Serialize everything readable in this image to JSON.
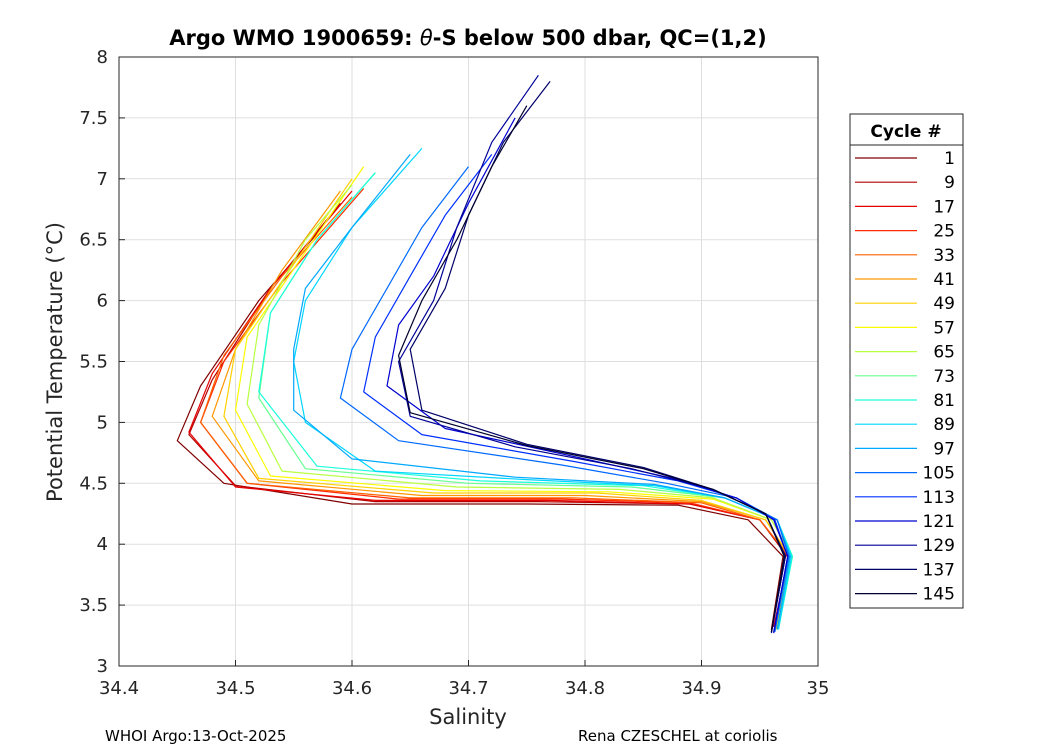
{
  "title_prefix": "Argo WMO 1900659: ",
  "title_theta": "θ",
  "title_suffix": "-S below 500 dbar,  QC=(1,2)",
  "footer_left": "WHOI Argo:13-Oct-2025",
  "footer_right": "Rena CZESCHEL at coriolis",
  "legend_title": "Cycle #",
  "chart_data": {
    "type": "line",
    "title": "Argo WMO 1900659: θ-S below 500 dbar,  QC=(1,2)",
    "xlabel": "Salinity",
    "ylabel": "Potential Temperature (°C)",
    "xlim": [
      34.4,
      35.0
    ],
    "ylim": [
      3,
      8
    ],
    "xticks": [
      "34.4",
      "34.5",
      "34.6",
      "34.7",
      "34.8",
      "34.9",
      "35"
    ],
    "yticks": [
      "3",
      "3.5",
      "4",
      "4.5",
      "5",
      "5.5",
      "6",
      "6.5",
      "7",
      "7.5",
      "8"
    ],
    "grid": true,
    "legend_position": "right",
    "series": [
      {
        "name": "1",
        "color": "#800000",
        "points": [
          [
            34.57,
            6.55
          ],
          [
            34.52,
            6.0
          ],
          [
            34.47,
            5.3
          ],
          [
            34.45,
            4.85
          ],
          [
            34.49,
            4.5
          ],
          [
            34.6,
            4.33
          ],
          [
            34.75,
            4.33
          ],
          [
            34.88,
            4.32
          ],
          [
            34.94,
            4.2
          ],
          [
            34.97,
            3.9
          ],
          [
            34.96,
            3.3
          ]
        ]
      },
      {
        "name": "9",
        "color": "#b40000",
        "points": [
          [
            34.59,
            6.8
          ],
          [
            34.53,
            6.1
          ],
          [
            34.48,
            5.35
          ],
          [
            34.46,
            4.9
          ],
          [
            34.5,
            4.48
          ],
          [
            34.62,
            4.35
          ],
          [
            34.76,
            4.35
          ],
          [
            34.89,
            4.33
          ],
          [
            34.95,
            4.2
          ],
          [
            34.975,
            3.88
          ],
          [
            34.962,
            3.32
          ]
        ]
      },
      {
        "name": "17",
        "color": "#e60000",
        "points": [
          [
            34.6,
            6.9
          ],
          [
            34.53,
            6.1
          ],
          [
            34.48,
            5.4
          ],
          [
            34.46,
            4.92
          ],
          [
            34.5,
            4.47
          ],
          [
            34.62,
            4.36
          ],
          [
            34.77,
            4.36
          ],
          [
            34.89,
            4.33
          ],
          [
            34.95,
            4.2
          ],
          [
            34.975,
            3.9
          ],
          [
            34.962,
            3.32
          ]
        ]
      },
      {
        "name": "25",
        "color": "#ff2a00",
        "points": [
          [
            34.61,
            6.92
          ],
          [
            34.54,
            6.15
          ],
          [
            34.49,
            5.5
          ],
          [
            34.47,
            5.0
          ],
          [
            34.51,
            4.5
          ],
          [
            34.64,
            4.37
          ],
          [
            34.78,
            4.37
          ],
          [
            34.89,
            4.34
          ],
          [
            34.95,
            4.2
          ],
          [
            34.975,
            3.9
          ],
          [
            34.963,
            3.3
          ]
        ]
      },
      {
        "name": "33",
        "color": "#ff6000",
        "points": [
          [
            34.6,
            6.85
          ],
          [
            34.54,
            6.2
          ],
          [
            34.49,
            5.55
          ],
          [
            34.47,
            5.0
          ],
          [
            34.51,
            4.5
          ],
          [
            34.65,
            4.38
          ],
          [
            34.79,
            4.38
          ],
          [
            34.9,
            4.34
          ],
          [
            34.95,
            4.2
          ],
          [
            34.975,
            3.9
          ],
          [
            34.963,
            3.3
          ]
        ]
      },
      {
        "name": "41",
        "color": "#ff9600",
        "points": [
          [
            34.59,
            6.9
          ],
          [
            34.54,
            6.25
          ],
          [
            34.5,
            5.6
          ],
          [
            34.48,
            5.05
          ],
          [
            34.52,
            4.52
          ],
          [
            34.66,
            4.4
          ],
          [
            34.8,
            4.4
          ],
          [
            34.9,
            4.35
          ],
          [
            34.955,
            4.2
          ],
          [
            34.975,
            3.9
          ],
          [
            34.964,
            3.3
          ]
        ]
      },
      {
        "name": "49",
        "color": "#ffd000",
        "points": [
          [
            34.6,
            7.0
          ],
          [
            34.55,
            6.3
          ],
          [
            34.5,
            5.6
          ],
          [
            34.49,
            5.05
          ],
          [
            34.52,
            4.54
          ],
          [
            34.67,
            4.42
          ],
          [
            34.81,
            4.42
          ],
          [
            34.9,
            4.36
          ],
          [
            34.955,
            4.2
          ],
          [
            34.976,
            3.9
          ],
          [
            34.964,
            3.3
          ]
        ]
      },
      {
        "name": "57",
        "color": "#fbfc00",
        "points": [
          [
            34.61,
            7.1
          ],
          [
            34.56,
            6.4
          ],
          [
            34.51,
            5.7
          ],
          [
            34.5,
            5.1
          ],
          [
            34.53,
            4.56
          ],
          [
            34.68,
            4.44
          ],
          [
            34.82,
            4.43
          ],
          [
            34.91,
            4.37
          ],
          [
            34.96,
            4.2
          ],
          [
            34.978,
            3.9
          ],
          [
            34.965,
            3.3
          ]
        ]
      },
      {
        "name": "65",
        "color": "#b8ff40",
        "points": [
          [
            34.6,
            6.95
          ],
          [
            34.56,
            6.5
          ],
          [
            34.52,
            5.8
          ],
          [
            34.51,
            5.15
          ],
          [
            34.54,
            4.6
          ],
          [
            34.69,
            4.47
          ],
          [
            34.83,
            4.45
          ],
          [
            34.91,
            4.38
          ],
          [
            34.96,
            4.2
          ],
          [
            34.978,
            3.9
          ],
          [
            34.965,
            3.3
          ]
        ]
      },
      {
        "name": "73",
        "color": "#66ff90",
        "points": [
          [
            34.62,
            7.05
          ],
          [
            34.57,
            6.5
          ],
          [
            34.53,
            5.9
          ],
          [
            34.52,
            5.2
          ],
          [
            34.56,
            4.62
          ],
          [
            34.7,
            4.5
          ],
          [
            34.84,
            4.47
          ],
          [
            34.92,
            4.38
          ],
          [
            34.965,
            4.2
          ],
          [
            34.978,
            3.9
          ],
          [
            34.966,
            3.3
          ]
        ]
      },
      {
        "name": "81",
        "color": "#1affdc",
        "points": [
          [
            34.62,
            7.05
          ],
          [
            34.57,
            6.5
          ],
          [
            34.53,
            5.9
          ],
          [
            34.52,
            5.25
          ],
          [
            34.57,
            4.64
          ],
          [
            34.71,
            4.52
          ],
          [
            34.85,
            4.48
          ],
          [
            34.92,
            4.38
          ],
          [
            34.965,
            4.2
          ],
          [
            34.978,
            3.9
          ],
          [
            34.966,
            3.3
          ]
        ]
      },
      {
        "name": "89",
        "color": "#00d6ff",
        "points": [
          [
            34.66,
            7.25
          ],
          [
            34.6,
            6.6
          ],
          [
            34.56,
            6.0
          ],
          [
            34.55,
            5.5
          ],
          [
            34.56,
            5.0
          ],
          [
            34.62,
            4.6
          ],
          [
            34.75,
            4.53
          ],
          [
            34.86,
            4.48
          ],
          [
            34.92,
            4.38
          ],
          [
            34.965,
            4.2
          ],
          [
            34.977,
            3.9
          ],
          [
            34.966,
            3.3
          ]
        ]
      },
      {
        "name": "97",
        "color": "#00a8ff",
        "points": [
          [
            34.65,
            7.2
          ],
          [
            34.6,
            6.6
          ],
          [
            34.56,
            6.1
          ],
          [
            34.55,
            5.6
          ],
          [
            34.55,
            5.1
          ],
          [
            34.6,
            4.7
          ],
          [
            34.74,
            4.55
          ],
          [
            34.86,
            4.49
          ],
          [
            34.92,
            4.38
          ],
          [
            34.965,
            4.2
          ],
          [
            34.976,
            3.9
          ],
          [
            34.965,
            3.3
          ]
        ]
      },
      {
        "name": "105",
        "color": "#006aff",
        "points": [
          [
            34.7,
            7.1
          ],
          [
            34.66,
            6.6
          ],
          [
            34.63,
            6.1
          ],
          [
            34.6,
            5.6
          ],
          [
            34.59,
            5.2
          ],
          [
            34.64,
            4.85
          ],
          [
            34.78,
            4.65
          ],
          [
            34.87,
            4.5
          ],
          [
            34.93,
            4.38
          ],
          [
            34.965,
            4.2
          ],
          [
            34.975,
            3.9
          ],
          [
            34.963,
            3.28
          ]
        ]
      },
      {
        "name": "113",
        "color": "#0030ff",
        "points": [
          [
            34.72,
            7.2
          ],
          [
            34.68,
            6.7
          ],
          [
            34.65,
            6.2
          ],
          [
            34.62,
            5.7
          ],
          [
            34.61,
            5.25
          ],
          [
            34.66,
            4.9
          ],
          [
            34.79,
            4.68
          ],
          [
            34.88,
            4.52
          ],
          [
            34.93,
            4.38
          ],
          [
            34.963,
            4.2
          ],
          [
            34.974,
            3.9
          ],
          [
            34.962,
            3.28
          ]
        ]
      },
      {
        "name": "121",
        "color": "#0000d0",
        "points": [
          [
            34.74,
            7.5
          ],
          [
            34.7,
            6.8
          ],
          [
            34.67,
            6.2
          ],
          [
            34.64,
            5.8
          ],
          [
            34.63,
            5.3
          ],
          [
            34.68,
            4.95
          ],
          [
            34.8,
            4.7
          ],
          [
            34.88,
            4.53
          ],
          [
            34.93,
            4.38
          ],
          [
            34.962,
            4.2
          ],
          [
            34.974,
            3.9
          ],
          [
            34.962,
            3.27
          ]
        ]
      },
      {
        "name": "129",
        "color": "#000098",
        "points": [
          [
            34.76,
            7.85
          ],
          [
            34.72,
            7.3
          ],
          [
            34.69,
            6.6
          ],
          [
            34.67,
            6.0
          ],
          [
            34.64,
            5.5
          ],
          [
            34.65,
            5.05
          ],
          [
            34.74,
            4.8
          ],
          [
            34.84,
            4.62
          ],
          [
            34.91,
            4.45
          ],
          [
            34.955,
            4.25
          ],
          [
            34.972,
            3.9
          ],
          [
            34.96,
            3.27
          ]
        ]
      },
      {
        "name": "137",
        "color": "#000068",
        "points": [
          [
            34.77,
            7.8
          ],
          [
            34.73,
            7.3
          ],
          [
            34.7,
            6.7
          ],
          [
            34.68,
            6.1
          ],
          [
            34.65,
            5.6
          ],
          [
            34.66,
            5.1
          ],
          [
            34.75,
            4.82
          ],
          [
            34.85,
            4.63
          ],
          [
            34.91,
            4.45
          ],
          [
            34.955,
            4.25
          ],
          [
            34.972,
            3.9
          ],
          [
            34.96,
            3.28
          ]
        ]
      },
      {
        "name": "145",
        "color": "#00002e",
        "points": [
          [
            34.75,
            7.6
          ],
          [
            34.72,
            7.1
          ],
          [
            34.69,
            6.5
          ],
          [
            34.66,
            6.0
          ],
          [
            34.64,
            5.55
          ],
          [
            34.65,
            5.08
          ],
          [
            34.75,
            4.81
          ],
          [
            34.85,
            4.62
          ],
          [
            34.91,
            4.45
          ],
          [
            34.955,
            4.25
          ],
          [
            34.971,
            3.9
          ],
          [
            34.96,
            3.28
          ]
        ]
      }
    ]
  }
}
